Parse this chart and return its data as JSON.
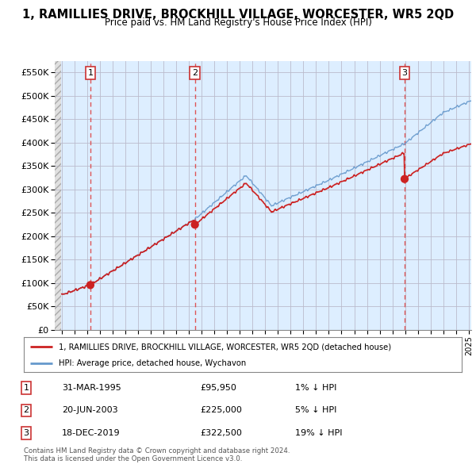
{
  "title": "1, RAMILLIES DRIVE, BROCKHILL VILLAGE, WORCESTER, WR5 2QD",
  "subtitle": "Price paid vs. HM Land Registry's House Price Index (HPI)",
  "ylim": [
    0,
    575000
  ],
  "yticks": [
    0,
    50000,
    100000,
    150000,
    200000,
    250000,
    300000,
    350000,
    400000,
    450000,
    500000,
    550000
  ],
  "ytick_labels": [
    "£0",
    "£50K",
    "£100K",
    "£150K",
    "£200K",
    "£250K",
    "£300K",
    "£350K",
    "£400K",
    "£450K",
    "£500K",
    "£550K"
  ],
  "hpi_color": "#6699cc",
  "price_color": "#cc2222",
  "dot_color": "#cc2222",
  "sale_dates": [
    1995.25,
    2003.47,
    2019.96
  ],
  "sale_prices": [
    95950,
    225000,
    322500
  ],
  "sale_labels": [
    "1",
    "2",
    "3"
  ],
  "legend_label_red": "1, RAMILLIES DRIVE, BROCKHILL VILLAGE, WORCESTER, WR5 2QD (detached house)",
  "legend_label_blue": "HPI: Average price, detached house, Wychavon",
  "table_rows": [
    [
      "1",
      "31-MAR-1995",
      "£95,950",
      "1% ↓ HPI"
    ],
    [
      "2",
      "20-JUN-2003",
      "£225,000",
      "5% ↓ HPI"
    ],
    [
      "3",
      "18-DEC-2019",
      "£322,500",
      "19% ↓ HPI"
    ]
  ],
  "footnote": "Contains HM Land Registry data © Crown copyright and database right 2024.\nThis data is licensed under the Open Government Licence v3.0.",
  "bg_plot_color": "#ddeeff",
  "bg_hatch_color": "#cccccc",
  "grid_color": "#bbbbcc",
  "vline_color": "#dd4444",
  "xstart": 1993.0,
  "xend": 2025.2
}
